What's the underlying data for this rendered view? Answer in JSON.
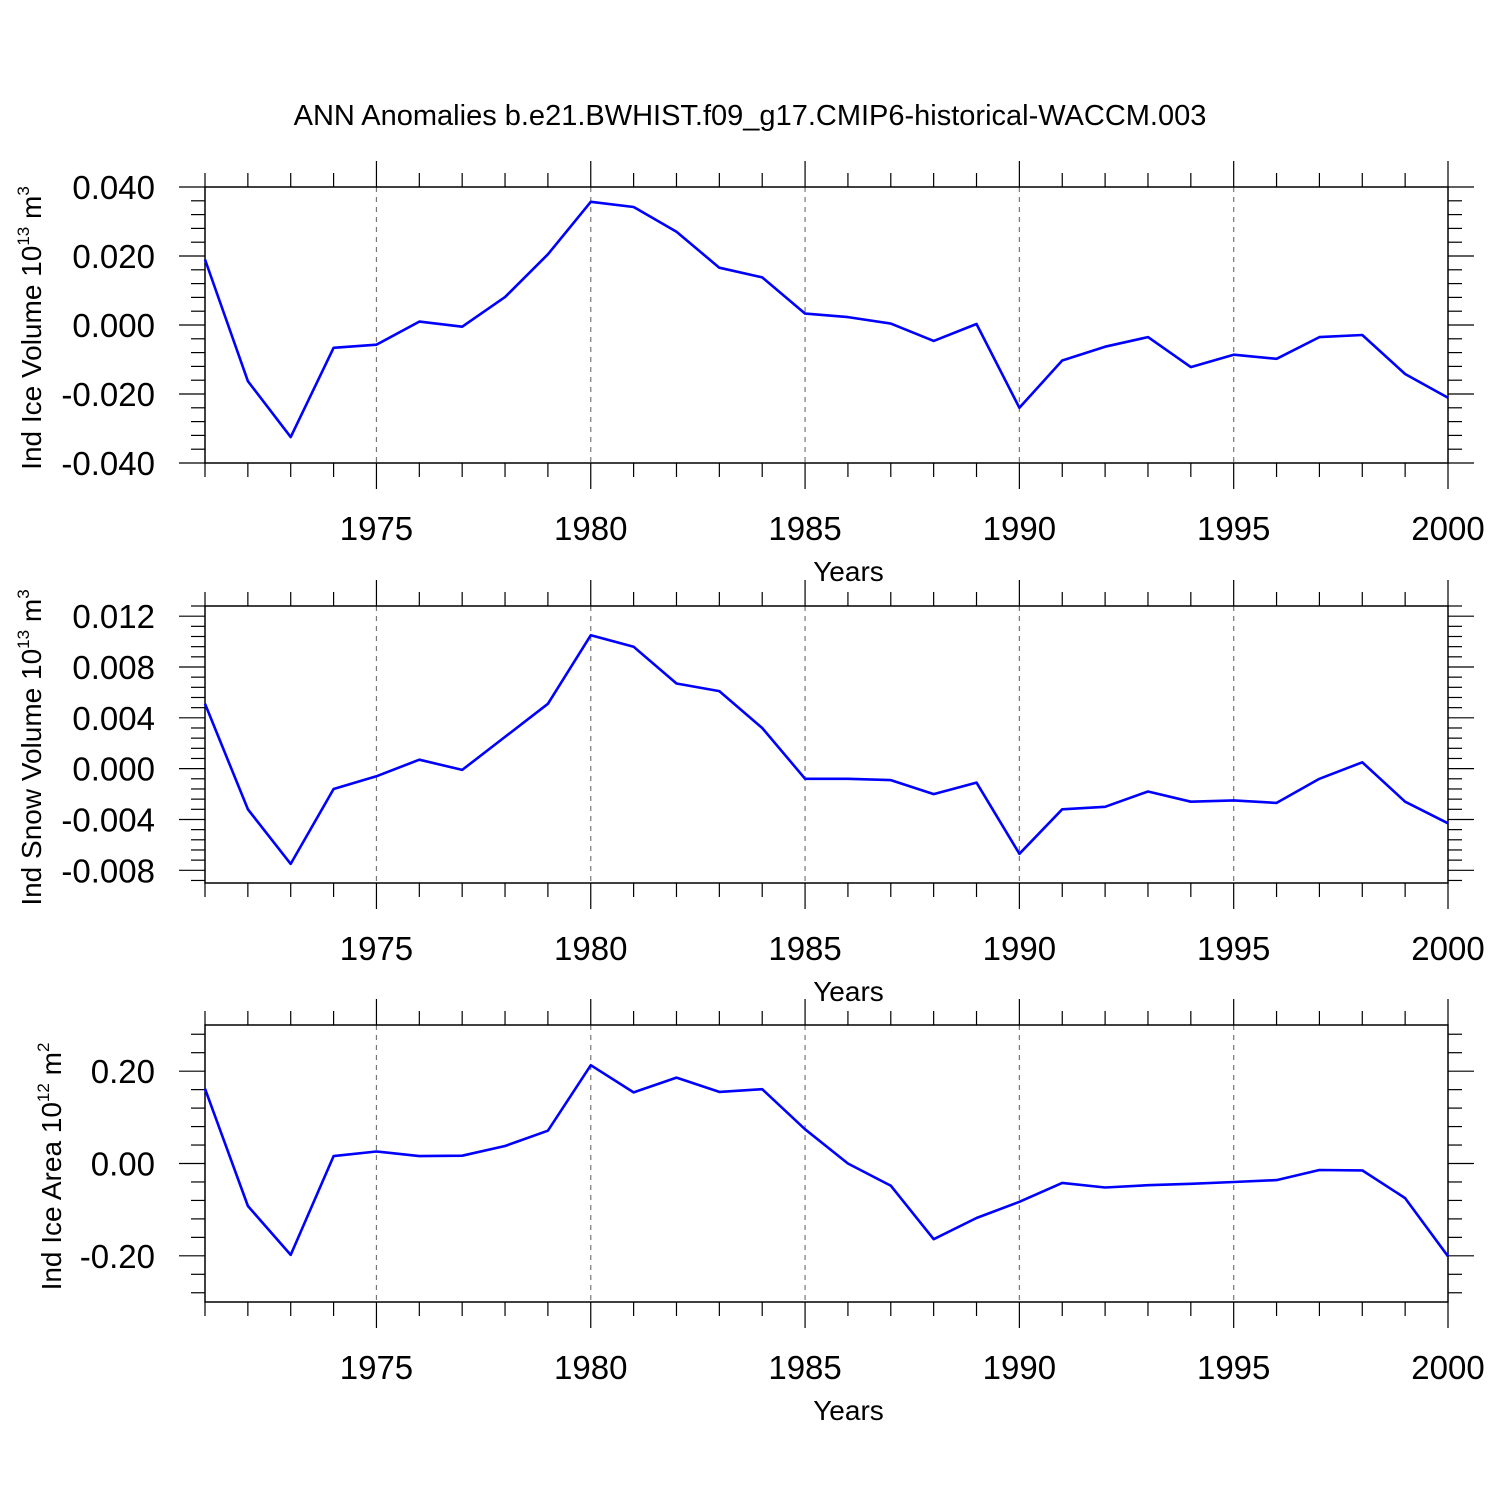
{
  "title": "ANN Anomalies b.e21.BWHIST.f09_g17.CMIP6-historical-WACCM.003",
  "colors": {
    "line": "#0000ff",
    "axis": "#000000",
    "grid": "#777777"
  },
  "chart_data": [
    {
      "type": "line",
      "xlabel": "Years",
      "ylabel": {
        "text": "Ind Ice Volume 10",
        "sup": "13",
        "unit": " m",
        "unit_sup": "3"
      },
      "xlim": [
        1971,
        2000
      ],
      "ylim": [
        -0.04,
        0.04
      ],
      "x_ticks": [
        1975,
        1980,
        1985,
        1990,
        1995,
        2000
      ],
      "x_tick_labels": [
        "1975",
        "1980",
        "1985",
        "1990",
        "1995",
        "2000"
      ],
      "y_ticks": [
        0.04,
        0.02,
        0.0,
        -0.02,
        -0.04
      ],
      "y_tick_labels": [
        "0.040",
        "0.020",
        "0.000",
        "-0.020",
        "-0.040"
      ],
      "x": [
        1971,
        1972,
        1973,
        1974,
        1975,
        1976,
        1977,
        1978,
        1979,
        1980,
        1981,
        1982,
        1983,
        1984,
        1985,
        1986,
        1987,
        1988,
        1989,
        1990,
        1991,
        1992,
        1993,
        1994,
        1995,
        1996,
        1997,
        1998,
        1999,
        2000
      ],
      "values": [
        0.019,
        -0.0163,
        -0.0325,
        -0.0066,
        -0.0057,
        0.001,
        -0.0005,
        0.0081,
        0.0205,
        0.0357,
        0.0342,
        0.027,
        0.0166,
        0.0138,
        0.0033,
        0.0023,
        0.0004,
        -0.0046,
        0.0003,
        -0.024,
        -0.0103,
        -0.0063,
        -0.0035,
        -0.0122,
        -0.0086,
        -0.0098,
        -0.0035,
        -0.0029,
        -0.0142,
        -0.0211
      ]
    },
    {
      "type": "line",
      "xlabel": "Years",
      "ylabel": {
        "text": "Ind Snow Volume 10",
        "sup": "13",
        "unit": " m",
        "unit_sup": "3"
      },
      "xlim": [
        1971,
        2000
      ],
      "ylim": [
        -0.009,
        0.0128
      ],
      "x_ticks": [
        1975,
        1980,
        1985,
        1990,
        1995,
        2000
      ],
      "x_tick_labels": [
        "1975",
        "1980",
        "1985",
        "1990",
        "1995",
        "2000"
      ],
      "y_ticks": [
        0.012,
        0.008,
        0.004,
        0.0,
        -0.004,
        -0.008
      ],
      "y_tick_labels": [
        "0.012",
        "0.008",
        "0.004",
        "0.000",
        "-0.004",
        "-0.008"
      ],
      "x": [
        1971,
        1972,
        1973,
        1974,
        1975,
        1976,
        1977,
        1978,
        1979,
        1980,
        1981,
        1982,
        1983,
        1984,
        1985,
        1986,
        1987,
        1988,
        1989,
        1990,
        1991,
        1992,
        1993,
        1994,
        1995,
        1996,
        1997,
        1998,
        1999,
        2000
      ],
      "values": [
        0.0051,
        -0.0032,
        -0.0075,
        -0.0016,
        -0.0006,
        0.0007,
        -0.0001,
        0.0025,
        0.0051,
        0.0105,
        0.0096,
        0.0067,
        0.0061,
        0.0032,
        -0.0008,
        -0.0008,
        -0.0009,
        -0.002,
        -0.0011,
        -0.0067,
        -0.0032,
        -0.003,
        -0.0018,
        -0.0026,
        -0.0025,
        -0.0027,
        -0.0008,
        0.0005,
        -0.0026,
        -0.0043
      ]
    },
    {
      "type": "line",
      "xlabel": "Years",
      "ylabel": {
        "text": "Ind Ice Area 10",
        "sup": "12",
        "unit": " m",
        "unit_sup": "2"
      },
      "xlim": [
        1971,
        2000
      ],
      "ylim": [
        -0.3,
        0.3
      ],
      "x_ticks": [
        1975,
        1980,
        1985,
        1990,
        1995,
        2000
      ],
      "x_tick_labels": [
        "1975",
        "1980",
        "1985",
        "1990",
        "1995",
        "2000"
      ],
      "y_ticks": [
        0.2,
        0.0,
        -0.2
      ],
      "y_tick_labels": [
        "0.20",
        "0.00",
        "-0.20"
      ],
      "x": [
        1971,
        1972,
        1973,
        1974,
        1975,
        1976,
        1977,
        1978,
        1979,
        1980,
        1981,
        1982,
        1983,
        1984,
        1985,
        1986,
        1987,
        1988,
        1989,
        1990,
        1991,
        1992,
        1993,
        1994,
        1995,
        1996,
        1997,
        1998,
        1999,
        2000
      ],
      "values": [
        0.162,
        -0.092,
        -0.198,
        0.016,
        0.026,
        0.016,
        0.017,
        0.038,
        0.071,
        0.213,
        0.154,
        0.186,
        0.155,
        0.161,
        0.074,
        0.0,
        -0.048,
        -0.164,
        -0.118,
        -0.083,
        -0.042,
        -0.052,
        -0.047,
        -0.044,
        -0.04,
        -0.036,
        -0.014,
        -0.015,
        -0.075,
        -0.201
      ]
    }
  ]
}
